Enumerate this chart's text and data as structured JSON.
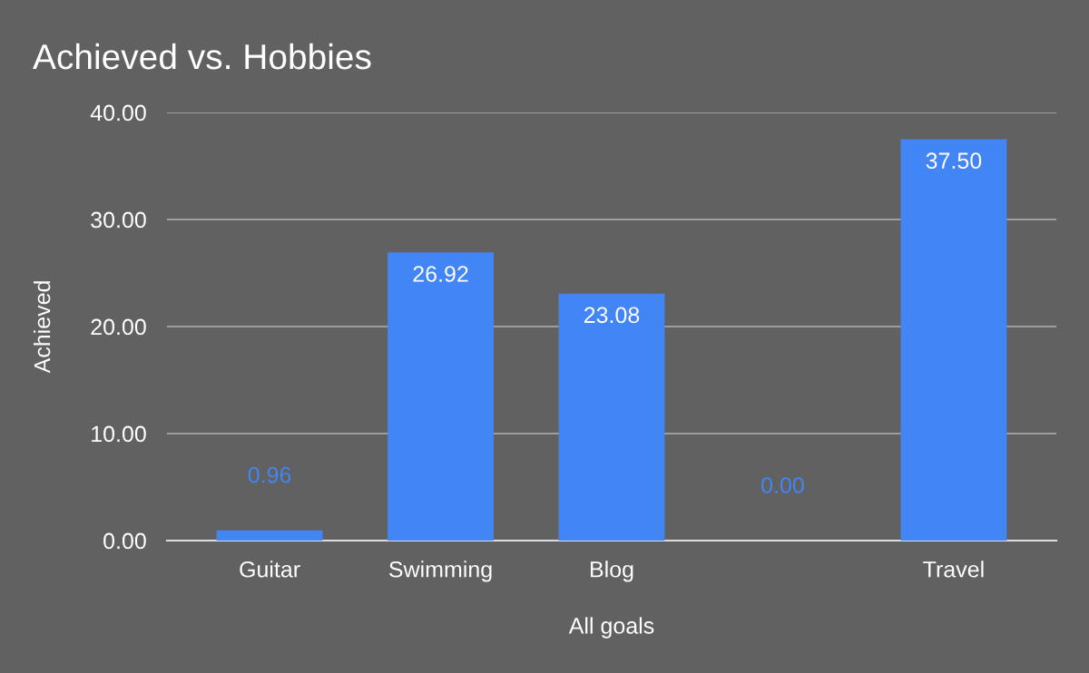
{
  "chart_data": {
    "type": "bar",
    "title": "Achieved vs. Hobbies",
    "xlabel": "All goals",
    "ylabel": "Achieved",
    "categories": [
      "Guitar",
      "Swimming",
      "Blog",
      null,
      "Travel"
    ],
    "values": [
      0.96,
      26.92,
      23.08,
      0,
      37.5
    ],
    "value_labels": [
      "0.96",
      "26.92",
      "23.08",
      "0.00",
      "37.50"
    ],
    "color": "#4285f4",
    "ylim": [
      0,
      40
    ],
    "yticks": [
      {
        "value": 0,
        "label": "0.00"
      },
      {
        "value": 10,
        "label": "10.00"
      },
      {
        "value": 20,
        "label": "20.00"
      },
      {
        "value": 30,
        "label": "30.00"
      },
      {
        "value": 40,
        "label": "40.00"
      }
    ],
    "grid": "y",
    "legend": false
  }
}
